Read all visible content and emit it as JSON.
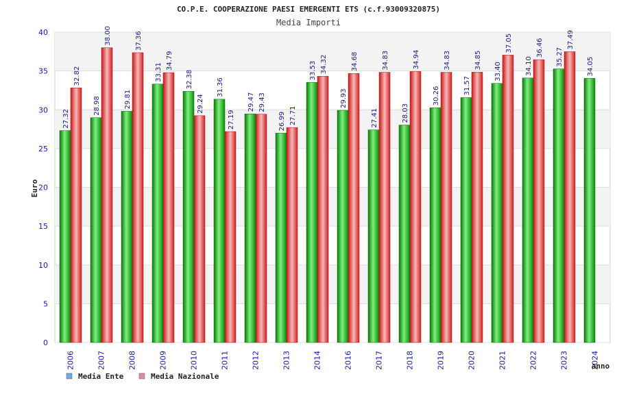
{
  "chart_data": {
    "type": "bar",
    "title": "CO.P.E. COOPERAZIONE PAESI EMERGENTI ETS (c.f.93009320875)",
    "subtitle": "Media Importi",
    "xlabel": "anno",
    "ylabel": "Euro",
    "ylim": [
      0,
      40
    ],
    "yticks": [
      0,
      5,
      10,
      15,
      20,
      25,
      30,
      35,
      40
    ],
    "grid": true,
    "legend_position": "bottom-left",
    "categories": [
      "2006",
      "2007",
      "2008",
      "2009",
      "2010",
      "2011",
      "2012",
      "2013",
      "2014",
      "2016",
      "2017",
      "2018",
      "2019",
      "2020",
      "2021",
      "2022",
      "2023",
      "2024"
    ],
    "series": [
      {
        "name": "Media Ente",
        "legend_color": "#6fa8e8",
        "bar_color": "#1fbf1f",
        "values": [
          27.32,
          28.98,
          29.81,
          33.31,
          32.38,
          31.36,
          29.47,
          26.99,
          33.53,
          29.93,
          27.41,
          28.03,
          30.26,
          31.57,
          33.4,
          34.1,
          35.27,
          34.05
        ],
        "labels": [
          "27.32",
          "28.98",
          "29.81",
          "33.31",
          "32.38",
          "31.36",
          "29.47",
          "26.99",
          "33.53",
          "29.93",
          "27.41",
          "28.03",
          "30.26",
          "31.57",
          "33.40",
          "34.10",
          "35.27",
          "34.05"
        ]
      },
      {
        "name": "Media Nazionale",
        "legend_color": "#e08aa8",
        "bar_color": "#e83030",
        "values": [
          32.82,
          38.0,
          37.36,
          34.79,
          29.24,
          27.19,
          29.43,
          27.71,
          34.32,
          34.68,
          34.83,
          34.94,
          34.83,
          34.85,
          37.05,
          36.46,
          37.49,
          null
        ],
        "labels": [
          "32.82",
          "38.00",
          "37.36",
          "34.79",
          "29.24",
          "27.19",
          "29.43",
          "27.71",
          "34.32",
          "34.68",
          "34.83",
          "34.94",
          "34.83",
          "34.85",
          "37.05",
          "36.46",
          "37.49",
          ""
        ]
      }
    ]
  }
}
